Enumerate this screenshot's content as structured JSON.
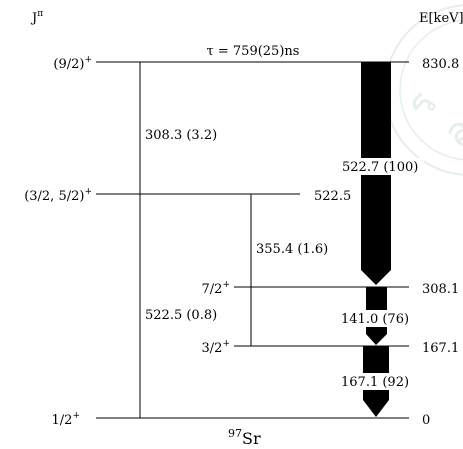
{
  "header": {
    "spin_parity_label": "J",
    "spin_parity_sup": "π",
    "energy_label": "E[keV]"
  },
  "watermark": {
    "color": "#cfe3d9"
  },
  "levels": [
    {
      "spin": "(9/2)",
      "parity": "+",
      "energy": "830.8"
    },
    {
      "spin": "(3/2, 5/2)",
      "parity": "+",
      "energy": "522.5"
    },
    {
      "spin": "7/2",
      "parity": "+",
      "energy": "308.1"
    },
    {
      "spin": "3/2",
      "parity": "+",
      "energy": "167.1"
    },
    {
      "spin": "1/2",
      "parity": "+",
      "energy": "0"
    }
  ],
  "lifetime": "τ = 759(25)ns",
  "transitions": [
    {
      "label": "308.3 (3.2)"
    },
    {
      "label": "522.5 (0.8)"
    },
    {
      "label": "355.4 (1.6)"
    },
    {
      "label": "522.7 (100)"
    },
    {
      "label": "141.0 (76)"
    },
    {
      "label": "167.1 (92)"
    }
  ],
  "nucleus": {
    "mass": "97",
    "symbol": "Sr"
  }
}
